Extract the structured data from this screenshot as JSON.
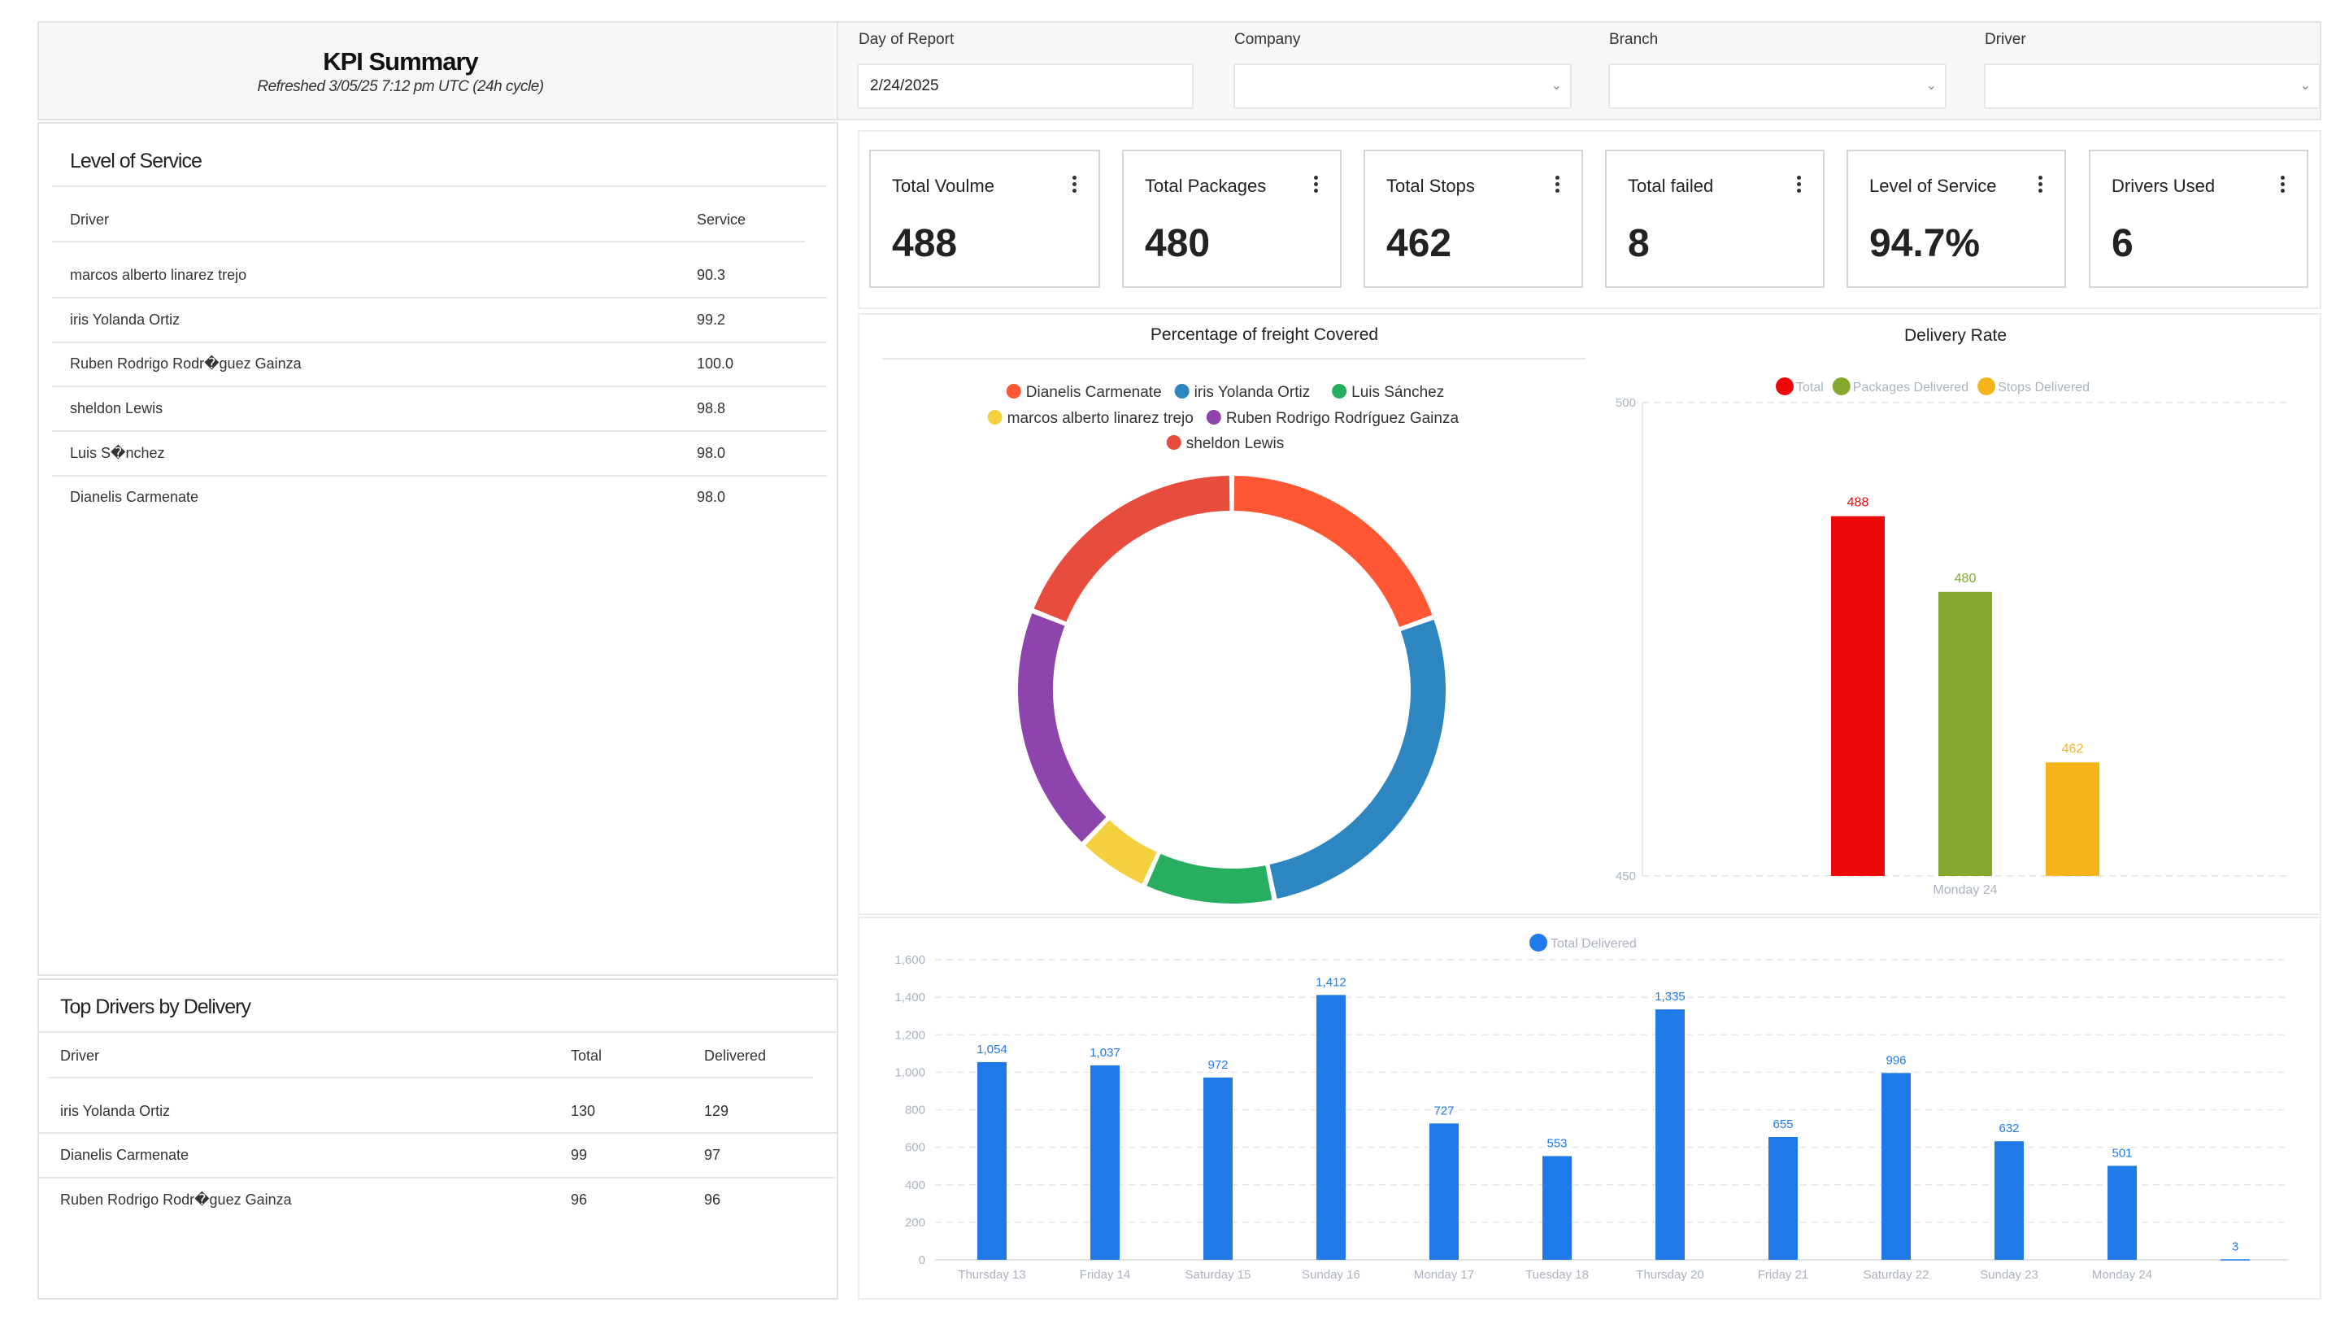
{
  "header": {
    "title": "KPI Summary",
    "subtitle": "Refreshed 3/05/25 7:12 pm UTC (24h cycle)"
  },
  "filters": [
    {
      "label": "Day of Report",
      "value": "2/24/2025"
    },
    {
      "label": "Company",
      "value": ""
    },
    {
      "label": "Branch",
      "value": ""
    },
    {
      "label": "Driver",
      "value": ""
    }
  ],
  "level_of_service": {
    "title": "Level of Service",
    "columns": [
      "Driver",
      "Service"
    ],
    "rows": [
      {
        "driver": "marcos alberto linarez trejo",
        "service": "90.3"
      },
      {
        "driver": "iris  Yolanda  Ortiz",
        "service": "99.2"
      },
      {
        "driver": "Ruben Rodrigo  Rodr�guez Gainza",
        "service": "100.0"
      },
      {
        "driver": "sheldon Lewis",
        "service": "98.8"
      },
      {
        "driver": "Luis S�nchez",
        "service": "98.0"
      },
      {
        "driver": "Dianelis Carmenate",
        "service": "98.0"
      }
    ]
  },
  "top_drivers": {
    "title": "Top Drivers by Delivery",
    "columns": [
      "Driver",
      "Total",
      "Delivered"
    ],
    "rows": [
      {
        "driver": "iris  Yolanda  Ortiz",
        "total": "130",
        "delivered": "129"
      },
      {
        "driver": "Dianelis Carmenate",
        "total": "99",
        "delivered": "97"
      },
      {
        "driver": "Ruben Rodrigo  Rodr�guez Gainza",
        "total": "96",
        "delivered": "96"
      }
    ]
  },
  "cards": [
    {
      "label": "Total Voulme",
      "value": "488"
    },
    {
      "label": "Total Packages",
      "value": "480"
    },
    {
      "label": "Total Stops",
      "value": "462"
    },
    {
      "label": "Total failed",
      "value": "8"
    },
    {
      "label": "Level of Service",
      "value": "94.7%"
    },
    {
      "label": "Drivers Used",
      "value": "6"
    }
  ],
  "chart_data": [
    {
      "type": "pie",
      "title": "Percentage of freight Covered",
      "labels": [
        "Dianelis Carmenate",
        "iris  Yolanda  Ortiz",
        "Luis Sánchez",
        "marcos alberto linarez trejo",
        "Ruben Rodrigo  Rodríguez Gainza",
        "sheldon Lewis"
      ],
      "values": [
        19.5,
        27.3,
        9.9,
        5.5,
        18.8,
        19.0
      ],
      "colors": [
        "#ff5733",
        "#2e86c1",
        "#27ae60",
        "#f4d03f",
        "#8e44ad",
        "#e74c3c"
      ],
      "legend": "top"
    },
    {
      "type": "bar",
      "title": "Delivery Rate",
      "categories": [
        "Monday 24"
      ],
      "series": [
        {
          "name": "Total",
          "values": [
            488
          ],
          "color": "#ee0909"
        },
        {
          "name": "Packages Delivered",
          "values": [
            480
          ],
          "color": "#84a92e"
        },
        {
          "name": "Stops Delivered",
          "values": [
            462
          ],
          "color": "#f6b41c"
        }
      ],
      "ylim": [
        450,
        500
      ],
      "yticks": [
        "500",
        "450"
      ],
      "legend": "top"
    },
    {
      "type": "bar",
      "title": "",
      "categories": [
        "Thursday 13",
        "Friday 14",
        "Saturday 15",
        "Sunday 16",
        "Monday 17",
        "Tuesday 18",
        "Thursday 20",
        "Friday 21",
        "Saturday 22",
        "Sunday 23",
        "Monday 24",
        ""
      ],
      "series": [
        {
          "name": "Total Delivered",
          "values": [
            1054,
            1037,
            972,
            1412,
            727,
            553,
            1335,
            655,
            996,
            632,
            501,
            3
          ],
          "color": "#1f7ae8"
        }
      ],
      "value_labels": [
        "1,054",
        "1,037",
        "972",
        "1,412",
        "727",
        "553",
        "1,335",
        "655",
        "996",
        "632",
        "501",
        "3"
      ],
      "ylim": [
        0,
        1600
      ],
      "yticks": [
        "1,600",
        "1,400",
        "1,200",
        "1,000",
        "800",
        "600",
        "400",
        "200",
        "0"
      ],
      "legend": "top"
    }
  ]
}
